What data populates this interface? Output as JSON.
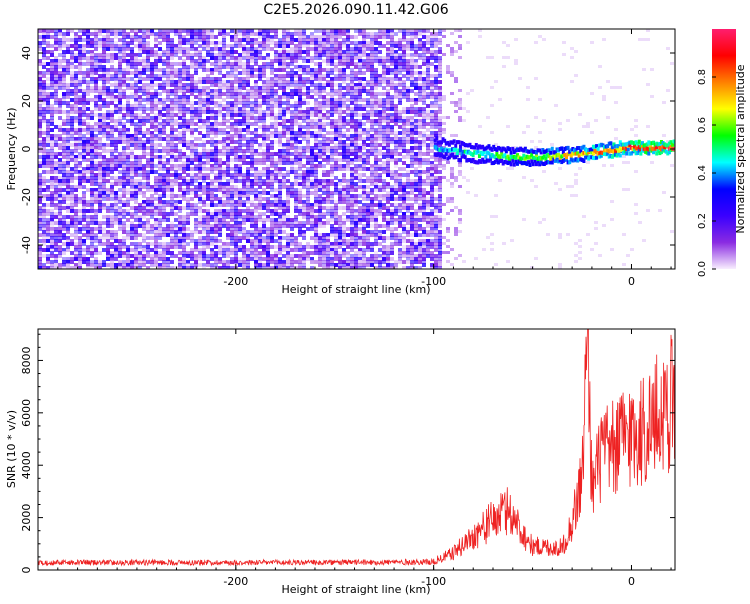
{
  "title": "C2E5.2026.090.11.42.G06",
  "colors": {
    "snr_line": "#ee2222",
    "noise_purple": "#7a1ff0",
    "axis": "#000000"
  },
  "chart_data": [
    {
      "type": "heatmap",
      "xlabel": "Height of straight line (km)",
      "ylabel": "Frequency (Hz)",
      "xlim": [
        -300,
        22
      ],
      "ylim": [
        -50,
        50
      ],
      "xticks": [
        -200,
        -100,
        0
      ],
      "yticks": [
        -40,
        -20,
        0,
        20,
        40
      ],
      "grid": false,
      "colorbar": {
        "label": "Normalized spectral amplitude",
        "range": [
          0,
          1
        ],
        "ticks": [
          "0.0",
          "0.2",
          "0.4",
          "0.6",
          "0.8"
        ],
        "colormap": [
          "#f8eefe",
          "#8a2be2",
          "#3a00ff",
          "#0000ff",
          "#00ffff",
          "#00ff00",
          "#ffff00",
          "#ff8000",
          "#ff0000",
          "#ff1e6e"
        ]
      },
      "features": {
        "noise_region_x": [
          -300,
          -96
        ],
        "signal_track_x": [
          -100,
          22
        ],
        "signal_track_freq_start": 0,
        "signal_track_freq_end": 0,
        "signal_track_min_freq": -4
      }
    },
    {
      "type": "line",
      "xlabel": "Height of straight line (km)",
      "ylabel": "SNR (10 * v/v)",
      "xlim": [
        -300,
        22
      ],
      "ylim": [
        0,
        9200
      ],
      "xticks": [
        -200,
        -100,
        0
      ],
      "yticks": [
        0,
        2000,
        4000,
        6000,
        8000
      ],
      "grid": false,
      "series": [
        {
          "x": [
            -300,
            -250,
            -200,
            -150,
            -110,
            -100,
            -90,
            -80,
            -70,
            -62,
            -55,
            -50,
            -45,
            -40,
            -35,
            -30,
            -25,
            -22,
            -20,
            -15,
            -10,
            -5,
            0,
            5,
            10,
            15,
            20,
            22
          ],
          "y": [
            300,
            300,
            300,
            300,
            320,
            320,
            650,
            1300,
            1900,
            2300,
            1400,
            900,
            900,
            850,
            850,
            1800,
            3500,
            9200,
            3000,
            4500,
            4500,
            5000,
            5200,
            5300,
            5600,
            6000,
            6500,
            6800
          ]
        }
      ]
    }
  ]
}
